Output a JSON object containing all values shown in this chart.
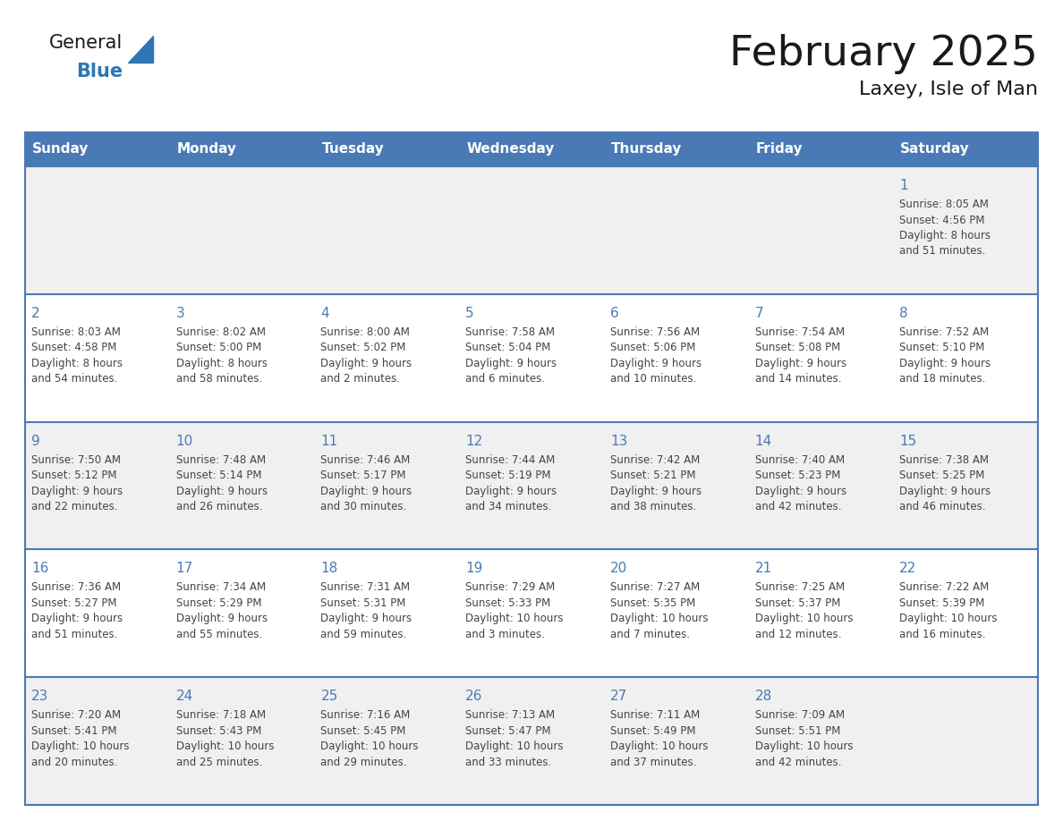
{
  "title": "February 2025",
  "subtitle": "Laxey, Isle of Man",
  "days_of_week": [
    "Sunday",
    "Monday",
    "Tuesday",
    "Wednesday",
    "Thursday",
    "Friday",
    "Saturday"
  ],
  "header_bg": "#4a7ab5",
  "header_text": "#ffffff",
  "row_bg_odd": "#f0f0f0",
  "row_bg_even": "#ffffff",
  "border_color": "#4a7ab5",
  "day_number_color": "#4a7ab5",
  "text_color": "#444444",
  "title_color": "#1a1a1a",
  "logo_general_color": "#1a1a1a",
  "logo_blue_color": "#2e75b6",
  "logo_triangle_color": "#2e75b6",
  "calendar_data": [
    [
      {
        "day": null,
        "info": null
      },
      {
        "day": null,
        "info": null
      },
      {
        "day": null,
        "info": null
      },
      {
        "day": null,
        "info": null
      },
      {
        "day": null,
        "info": null
      },
      {
        "day": null,
        "info": null
      },
      {
        "day": 1,
        "info": "Sunrise: 8:05 AM\nSunset: 4:56 PM\nDaylight: 8 hours\nand 51 minutes."
      }
    ],
    [
      {
        "day": 2,
        "info": "Sunrise: 8:03 AM\nSunset: 4:58 PM\nDaylight: 8 hours\nand 54 minutes."
      },
      {
        "day": 3,
        "info": "Sunrise: 8:02 AM\nSunset: 5:00 PM\nDaylight: 8 hours\nand 58 minutes."
      },
      {
        "day": 4,
        "info": "Sunrise: 8:00 AM\nSunset: 5:02 PM\nDaylight: 9 hours\nand 2 minutes."
      },
      {
        "day": 5,
        "info": "Sunrise: 7:58 AM\nSunset: 5:04 PM\nDaylight: 9 hours\nand 6 minutes."
      },
      {
        "day": 6,
        "info": "Sunrise: 7:56 AM\nSunset: 5:06 PM\nDaylight: 9 hours\nand 10 minutes."
      },
      {
        "day": 7,
        "info": "Sunrise: 7:54 AM\nSunset: 5:08 PM\nDaylight: 9 hours\nand 14 minutes."
      },
      {
        "day": 8,
        "info": "Sunrise: 7:52 AM\nSunset: 5:10 PM\nDaylight: 9 hours\nand 18 minutes."
      }
    ],
    [
      {
        "day": 9,
        "info": "Sunrise: 7:50 AM\nSunset: 5:12 PM\nDaylight: 9 hours\nand 22 minutes."
      },
      {
        "day": 10,
        "info": "Sunrise: 7:48 AM\nSunset: 5:14 PM\nDaylight: 9 hours\nand 26 minutes."
      },
      {
        "day": 11,
        "info": "Sunrise: 7:46 AM\nSunset: 5:17 PM\nDaylight: 9 hours\nand 30 minutes."
      },
      {
        "day": 12,
        "info": "Sunrise: 7:44 AM\nSunset: 5:19 PM\nDaylight: 9 hours\nand 34 minutes."
      },
      {
        "day": 13,
        "info": "Sunrise: 7:42 AM\nSunset: 5:21 PM\nDaylight: 9 hours\nand 38 minutes."
      },
      {
        "day": 14,
        "info": "Sunrise: 7:40 AM\nSunset: 5:23 PM\nDaylight: 9 hours\nand 42 minutes."
      },
      {
        "day": 15,
        "info": "Sunrise: 7:38 AM\nSunset: 5:25 PM\nDaylight: 9 hours\nand 46 minutes."
      }
    ],
    [
      {
        "day": 16,
        "info": "Sunrise: 7:36 AM\nSunset: 5:27 PM\nDaylight: 9 hours\nand 51 minutes."
      },
      {
        "day": 17,
        "info": "Sunrise: 7:34 AM\nSunset: 5:29 PM\nDaylight: 9 hours\nand 55 minutes."
      },
      {
        "day": 18,
        "info": "Sunrise: 7:31 AM\nSunset: 5:31 PM\nDaylight: 9 hours\nand 59 minutes."
      },
      {
        "day": 19,
        "info": "Sunrise: 7:29 AM\nSunset: 5:33 PM\nDaylight: 10 hours\nand 3 minutes."
      },
      {
        "day": 20,
        "info": "Sunrise: 7:27 AM\nSunset: 5:35 PM\nDaylight: 10 hours\nand 7 minutes."
      },
      {
        "day": 21,
        "info": "Sunrise: 7:25 AM\nSunset: 5:37 PM\nDaylight: 10 hours\nand 12 minutes."
      },
      {
        "day": 22,
        "info": "Sunrise: 7:22 AM\nSunset: 5:39 PM\nDaylight: 10 hours\nand 16 minutes."
      }
    ],
    [
      {
        "day": 23,
        "info": "Sunrise: 7:20 AM\nSunset: 5:41 PM\nDaylight: 10 hours\nand 20 minutes."
      },
      {
        "day": 24,
        "info": "Sunrise: 7:18 AM\nSunset: 5:43 PM\nDaylight: 10 hours\nand 25 minutes."
      },
      {
        "day": 25,
        "info": "Sunrise: 7:16 AM\nSunset: 5:45 PM\nDaylight: 10 hours\nand 29 minutes."
      },
      {
        "day": 26,
        "info": "Sunrise: 7:13 AM\nSunset: 5:47 PM\nDaylight: 10 hours\nand 33 minutes."
      },
      {
        "day": 27,
        "info": "Sunrise: 7:11 AM\nSunset: 5:49 PM\nDaylight: 10 hours\nand 37 minutes."
      },
      {
        "day": 28,
        "info": "Sunrise: 7:09 AM\nSunset: 5:51 PM\nDaylight: 10 hours\nand 42 minutes."
      },
      {
        "day": null,
        "info": null
      }
    ]
  ]
}
